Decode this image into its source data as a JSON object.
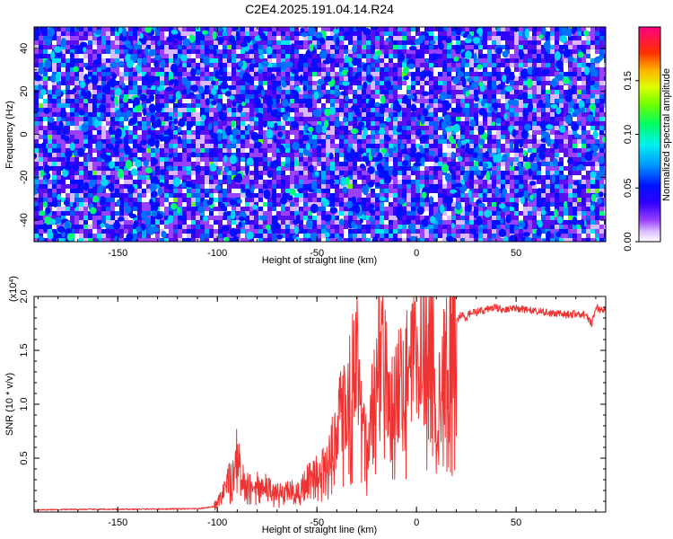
{
  "title": "C2E4.2025.191.04.14.R24",
  "chart_data": [
    {
      "type": "heatmap",
      "xlabel": "Height of straight line (km)",
      "ylabel": "Frequency (Hz)",
      "xlim": [
        -192,
        95
      ],
      "ylim": [
        -50,
        50
      ],
      "xticks": [
        -150,
        -100,
        -50,
        0,
        50
      ],
      "xtick_labels": [
        "-150",
        "-100",
        "-50",
        "0",
        "50"
      ],
      "yticks": [
        -40,
        -20,
        0,
        20,
        40
      ],
      "ytick_labels": [
        "-40",
        "-20",
        "0",
        "20",
        "40"
      ],
      "colorbar": {
        "label": "Normalized spectral amplitude",
        "range": [
          0,
          0.2
        ],
        "ticks": [
          0,
          0.05,
          0.1,
          0.15
        ],
        "tick_labels": [
          "0.00",
          "0.05",
          "0.10",
          "0.15"
        ],
        "colormap": [
          "#ffffff",
          "#c9a0ff",
          "#7a00ff",
          "#2a00ff",
          "#0000ff",
          "#0080ff",
          "#00ffe0",
          "#00ff40",
          "#aaff00",
          "#ffff00",
          "#ff8000",
          "#ff0000",
          "#ff0080"
        ]
      },
      "description_values": "noise-like field, mostly 0.01-0.05 (purple/blue) with scattered peaks up to ~0.10 (cyan/green)"
    },
    {
      "type": "line",
      "xlabel": "Height of straight line (km)",
      "ylabel": "SNR (10 * v/v)",
      "y_multiplier_label": "(x10",
      "y_multiplier_exp": "4",
      "xlim": [
        -192,
        95
      ],
      "ylim": [
        0,
        20000
      ],
      "xticks": [
        -150,
        -100,
        -50,
        0,
        50
      ],
      "xtick_labels": [
        "-150",
        "-100",
        "-50",
        "0",
        "50"
      ],
      "yticks": [
        5000,
        10000,
        15000,
        20000
      ],
      "ytick_labels": [
        "0.5",
        "1.0",
        "1.5",
        "2.0"
      ],
      "color": "#ee3333",
      "series": [
        {
          "x": [
            -192,
            -170,
            -150,
            -130,
            -110,
            -102,
            -98,
            -95,
            -92,
            -90,
            -88,
            -85,
            -80,
            -75,
            -70,
            -65,
            -60,
            -55,
            -50,
            -45,
            -42,
            -40,
            -38,
            -35,
            -32,
            -30,
            -28,
            -25,
            -22,
            -20,
            -18,
            -15,
            -12,
            -10,
            -8,
            -5,
            -2,
            0,
            3,
            5,
            8,
            10,
            12,
            15,
            18,
            20,
            22,
            25,
            28,
            30,
            35,
            40,
            45,
            50,
            55,
            60,
            65,
            70,
            75,
            80,
            85,
            88,
            90,
            92,
            95
          ],
          "y": [
            200,
            250,
            250,
            280,
            300,
            500,
            1500,
            2800,
            4000,
            6300,
            3500,
            2500,
            2800,
            2500,
            1800,
            2200,
            2000,
            3000,
            3800,
            4500,
            6500,
            8000,
            9500,
            11000,
            13000,
            15000,
            9000,
            6000,
            10000,
            14000,
            20000,
            13000,
            10500,
            11000,
            12500,
            14000,
            15000,
            13500,
            17000,
            18000,
            17500,
            6000,
            12000,
            15500,
            16500,
            17500,
            18300,
            18000,
            18700,
            18500,
            18800,
            19000,
            18700,
            18900,
            18800,
            18600,
            18500,
            18400,
            18300,
            18400,
            18300,
            17500,
            19000,
            18800,
            18700
          ]
        }
      ]
    }
  ]
}
